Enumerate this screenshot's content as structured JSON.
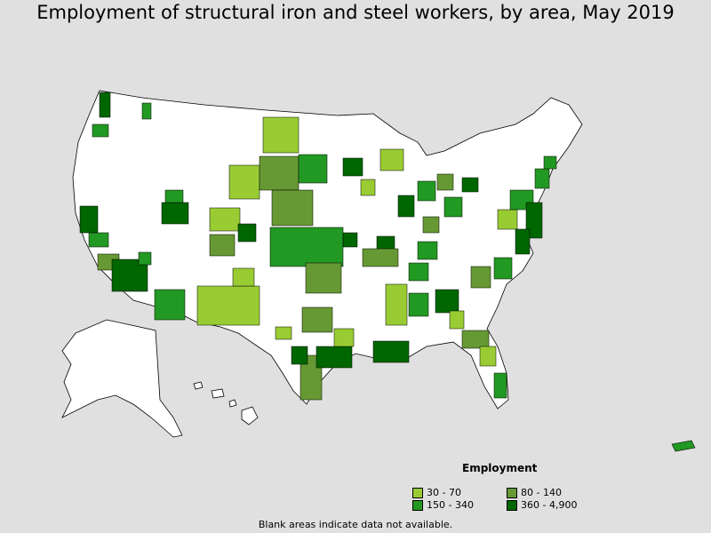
{
  "title": "Employment of structural iron and steel workers, by area, May 2019",
  "legend": {
    "title": "Employment",
    "items": [
      {
        "label": "30 - 70",
        "color": "#99cc33"
      },
      {
        "label": "80 - 140",
        "color": "#669933"
      },
      {
        "label": "150 - 340",
        "color": "#229922"
      },
      {
        "label": "360 - 4,900",
        "color": "#006600"
      }
    ]
  },
  "footnote": "Blank areas indicate data not available.",
  "colors": {
    "background": "#e0e0e0",
    "land": "#ffffff",
    "border": "#000000"
  }
}
